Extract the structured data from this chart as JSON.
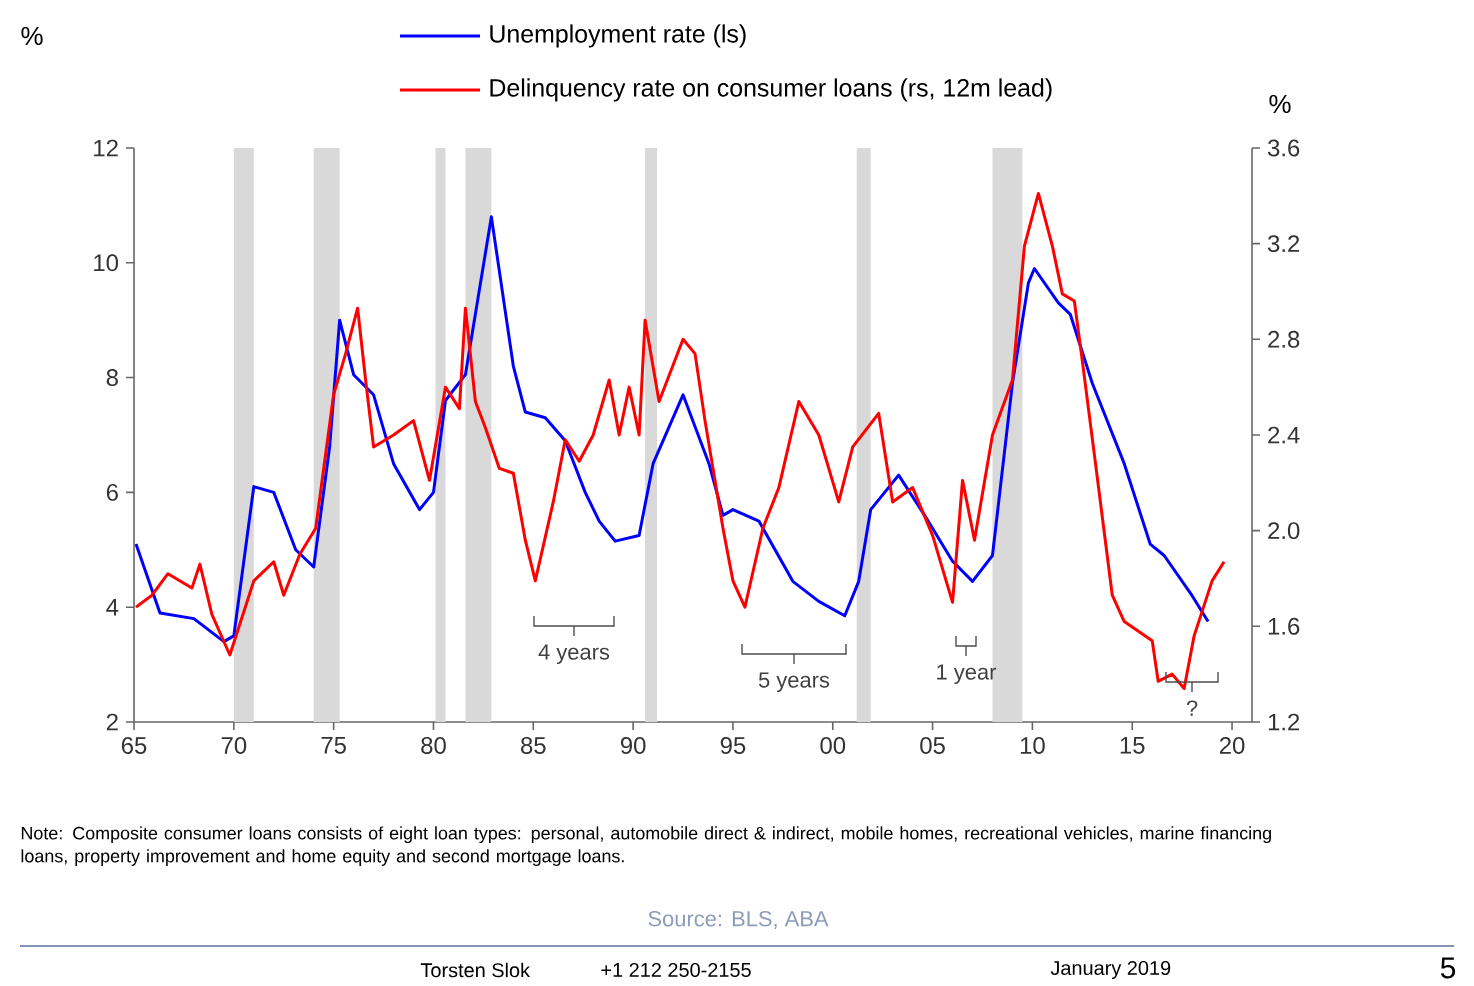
{
  "chart_data": {
    "type": "line",
    "ylabel": "%",
    "y2label": "%",
    "series": [
      {
        "name": "Unemployment rate (ls)",
        "color": "#0000ff",
        "x": [
          1965.1,
          1966.3,
          1968.0,
          1969.5,
          1970.0,
          1971.0,
          1972.0,
          1973.1,
          1974.0,
          1974.8,
          1975.3,
          1976.0,
          1977.0,
          1978.0,
          1979.3,
          1980.0,
          1980.6,
          1981.6,
          1982.9,
          1984.0,
          1984.6,
          1985.6,
          1986.6,
          1987.6,
          1988.3,
          1989.1,
          1990.3,
          1991.0,
          1992.5,
          1993.8,
          1994.5,
          1995.0,
          1996.3,
          1998.0,
          1999.3,
          2000.6,
          2001.3,
          2001.9,
          2003.3,
          2004.6,
          2006.0,
          2007.0,
          2008.0,
          2009.0,
          2009.8,
          2010.1,
          2011.3,
          2011.9,
          2013.0,
          2014.6,
          2015.9,
          2016.6,
          2018.0,
          2018.8
        ],
        "values": [
          5.1,
          3.9,
          3.8,
          3.4,
          3.5,
          6.1,
          6.0,
          5.0,
          4.7,
          6.8,
          9.0,
          8.05,
          7.7,
          6.5,
          5.7,
          6.0,
          7.6,
          8.05,
          10.8,
          8.2,
          7.4,
          7.3,
          6.9,
          6.0,
          5.5,
          5.15,
          5.25,
          6.5,
          7.7,
          6.5,
          5.6,
          5.7,
          5.5,
          4.45,
          4.1,
          3.85,
          4.45,
          5.7,
          6.3,
          5.6,
          4.8,
          4.45,
          4.9,
          7.9,
          9.65,
          9.9,
          9.3,
          9.1,
          7.9,
          6.5,
          5.1,
          4.9,
          4.2,
          3.75
        ]
      },
      {
        "name": "Delinquency rate on consumer loans (rs, 12m lead)",
        "color": "#ff0000",
        "axis": "y2",
        "x": [
          1965.1,
          1965.9,
          1966.7,
          1967.9,
          1968.3,
          1968.9,
          1969.8,
          1971.0,
          1972.0,
          1972.5,
          1973.3,
          1974.1,
          1975.0,
          1975.6,
          1976.2,
          1976.6,
          1977.0,
          1978.0,
          1979.0,
          1979.8,
          1980.6,
          1981.3,
          1981.6,
          1982.1,
          1982.6,
          1983.3,
          1984.0,
          1984.6,
          1985.1,
          1986.0,
          1986.6,
          1987.3,
          1988.0,
          1988.8,
          1989.3,
          1989.8,
          1990.3,
          1990.6,
          1991.3,
          1992.5,
          1993.1,
          1993.6,
          1994.5,
          1995.0,
          1995.6,
          1996.5,
          1997.3,
          1998.3,
          1999.3,
          2000.3,
          2001.0,
          2002.3,
          2003.0,
          2004.0,
          2005.0,
          2006.0,
          2006.5,
          2007.1,
          2008.0,
          2009.0,
          2009.6,
          2010.3,
          2011.0,
          2011.5,
          2012.1,
          2012.5,
          2013.1,
          2014.0,
          2014.6,
          2016.0,
          2016.3,
          2017.0,
          2017.6,
          2018.1,
          2019.0,
          2019.6
        ],
        "values": [
          1.68,
          1.73,
          1.82,
          1.76,
          1.86,
          1.65,
          1.48,
          1.79,
          1.87,
          1.73,
          1.9,
          2.01,
          2.57,
          2.74,
          2.93,
          2.63,
          2.35,
          2.4,
          2.46,
          2.21,
          2.6,
          2.51,
          2.93,
          2.54,
          2.43,
          2.26,
          2.24,
          1.96,
          1.79,
          2.12,
          2.38,
          2.29,
          2.4,
          2.63,
          2.4,
          2.6,
          2.4,
          2.88,
          2.54,
          2.8,
          2.74,
          2.46,
          2.01,
          1.79,
          1.68,
          2.01,
          2.18,
          2.54,
          2.4,
          2.12,
          2.35,
          2.49,
          2.12,
          2.18,
          1.98,
          1.7,
          2.21,
          1.96,
          2.4,
          2.63,
          3.19,
          3.41,
          3.19,
          2.99,
          2.96,
          2.71,
          2.32,
          1.73,
          1.62,
          1.54,
          1.37,
          1.4,
          1.34,
          1.56,
          1.79,
          1.87
        ]
      }
    ],
    "xlim": [
      1965,
      2021
    ],
    "xticks": [
      {
        "value": 1965,
        "label": "65"
      },
      {
        "value": 1970,
        "label": "70"
      },
      {
        "value": 1975,
        "label": "75"
      },
      {
        "value": 1980,
        "label": "80"
      },
      {
        "value": 1985,
        "label": "85"
      },
      {
        "value": 1990,
        "label": "90"
      },
      {
        "value": 1995,
        "label": "95"
      },
      {
        "value": 2000,
        "label": "00"
      },
      {
        "value": 2005,
        "label": "05"
      },
      {
        "value": 2010,
        "label": "10"
      },
      {
        "value": 2015,
        "label": "15"
      },
      {
        "value": 2020,
        "label": "20"
      }
    ],
    "ylim": [
      2,
      12
    ],
    "yticks": [
      2,
      4,
      6,
      8,
      10,
      12
    ],
    "y2lim": [
      1.2,
      3.6
    ],
    "y2ticks": [
      {
        "value": 1.2,
        "label": "1.2"
      },
      {
        "value": 1.6,
        "label": "1.6"
      },
      {
        "value": 2.0,
        "label": "2.0"
      },
      {
        "value": 2.4,
        "label": "2.4"
      },
      {
        "value": 2.8,
        "label": "2.8"
      },
      {
        "value": 3.2,
        "label": "3.2"
      },
      {
        "value": 3.6,
        "label": "3.6"
      }
    ],
    "bands": [
      {
        "axis": "x",
        "from": 1970.0,
        "to": 1971.0,
        "color": "#d9d9d9"
      },
      {
        "axis": "x",
        "from": 1974.0,
        "to": 1975.3,
        "color": "#d9d9d9"
      },
      {
        "axis": "x",
        "from": 1980.1,
        "to": 1980.6,
        "color": "#d9d9d9"
      },
      {
        "axis": "x",
        "from": 1981.6,
        "to": 1982.9,
        "color": "#d9d9d9"
      },
      {
        "axis": "x",
        "from": 1990.6,
        "to": 1991.2,
        "color": "#d9d9d9"
      },
      {
        "axis": "x",
        "from": 2001.2,
        "to": 2001.9,
        "color": "#d9d9d9"
      },
      {
        "axis": "x",
        "from": 2008.0,
        "to": 2009.5,
        "color": "#d9d9d9"
      }
    ],
    "annotations": [
      "4 years",
      "5 years",
      "1 year",
      "?",
      "Note: Composite consumer loans consists of eight loan types: personal, automobile direct & indirect, mobile homes, recreational vehicles, marine financing loans, property improvement and home equity and second mortgage loans.",
      "Source: BLS, ABA",
      "Torsten Slok",
      "+1 212 250-2155",
      "January 2019",
      "5"
    ],
    "legend": "top",
    "grid": false
  }
}
